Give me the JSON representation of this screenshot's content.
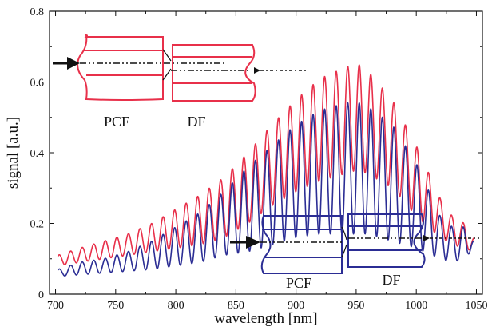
{
  "chart_data": {
    "type": "line",
    "xlabel": "wavelength [nm]",
    "ylabel": "signal [a.u.]",
    "xlim": [
      695,
      1055
    ],
    "ylim": [
      0,
      0.8
    ],
    "xticks": [
      700,
      750,
      800,
      850,
      900,
      950,
      1000,
      1050
    ],
    "yticks": [
      0,
      0.2,
      0.4,
      0.6,
      0.8
    ],
    "ytick_labels": [
      "0",
      "0.2",
      "0.4",
      "0.6",
      "0.8"
    ],
    "grid": false,
    "series": [
      {
        "color": "#e8304a",
        "fringe_period_nm": 9.6,
        "x": [
          702,
          720,
          740,
          760,
          780,
          800,
          820,
          840,
          860,
          880,
          900,
          920,
          940,
          950,
          960,
          980,
          1000,
          1020,
          1030,
          1040,
          1048
        ],
        "max": [
          0.11,
          0.13,
          0.15,
          0.17,
          0.2,
          0.24,
          0.28,
          0.33,
          0.4,
          0.48,
          0.55,
          0.61,
          0.64,
          0.655,
          0.63,
          0.55,
          0.42,
          0.27,
          0.22,
          0.2,
          0.16
        ],
        "min": [
          0.08,
          0.09,
          0.1,
          0.11,
          0.12,
          0.13,
          0.14,
          0.16,
          0.2,
          0.25,
          0.29,
          0.32,
          0.34,
          0.35,
          0.34,
          0.3,
          0.22,
          0.16,
          0.14,
          0.13,
          0.12
        ]
      },
      {
        "color": "#2b2d94",
        "fringe_period_nm": 9.6,
        "x": [
          702,
          720,
          740,
          760,
          780,
          800,
          820,
          840,
          860,
          880,
          900,
          920,
          940,
          950,
          960,
          980,
          1000,
          1020,
          1030,
          1040,
          1048
        ],
        "max": [
          0.07,
          0.09,
          0.1,
          0.12,
          0.15,
          0.19,
          0.23,
          0.29,
          0.36,
          0.42,
          0.48,
          0.52,
          0.54,
          0.545,
          0.53,
          0.48,
          0.37,
          0.22,
          0.19,
          0.19,
          0.15
        ],
        "min": [
          0.05,
          0.055,
          0.06,
          0.065,
          0.07,
          0.08,
          0.09,
          0.11,
          0.12,
          0.14,
          0.16,
          0.17,
          0.17,
          0.17,
          0.17,
          0.15,
          0.13,
          0.1,
          0.09,
          0.1,
          0.13
        ]
      }
    ]
  },
  "insets": [
    {
      "name": "red-setup",
      "color": "#e8304a",
      "left_label": "PCF",
      "right_label": "DF"
    },
    {
      "name": "blue-setup",
      "color": "#2b2d94",
      "left_label": "PCF",
      "right_label": "DF"
    }
  ]
}
